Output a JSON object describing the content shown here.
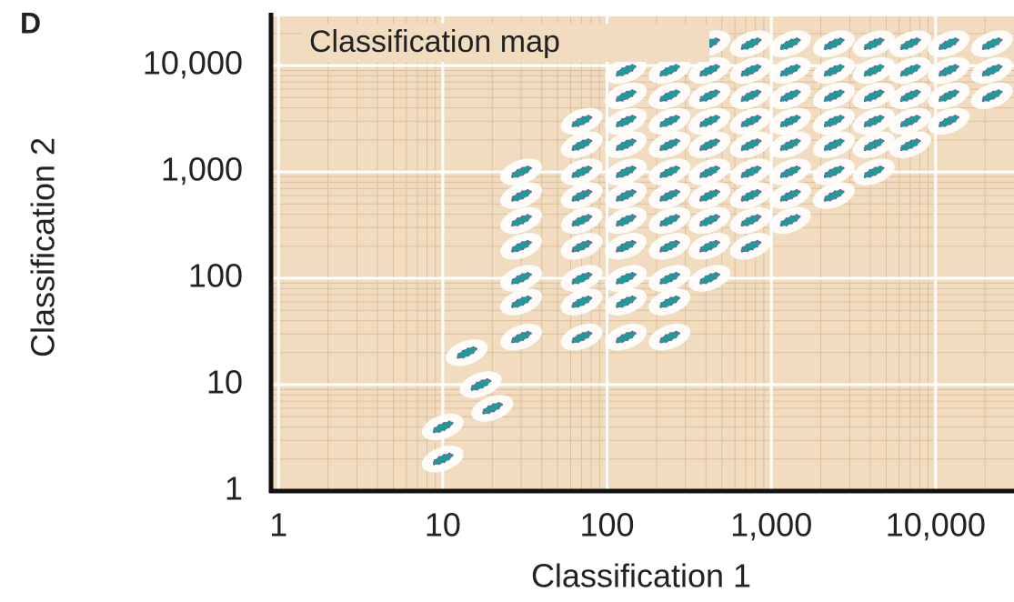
{
  "chart_data": {
    "type": "scatter",
    "panel_label": "D",
    "title": "Classification map",
    "x_label": "Classification 1",
    "y_label": "Classification 2",
    "log_x": true,
    "log_y": true,
    "grid": true,
    "background": "#f1dcc0",
    "color": "#1f9a9a",
    "halo_color": "#ffffff",
    "xlim": [
      0.9,
      30000
    ],
    "ylim": [
      1,
      29000
    ],
    "xticks": [
      1,
      10,
      100,
      {
        "value": 1000,
        "label": "1,000"
      },
      {
        "value": 10000,
        "label": "10,000"
      }
    ],
    "yticks": [
      1,
      10,
      100,
      {
        "value": 1000,
        "label": "1,000"
      },
      {
        "value": 10000,
        "label": "10,000"
      }
    ],
    "x": [
      10,
      10,
      14,
      17,
      20,
      30,
      30,
      30,
      30,
      30,
      30,
      30,
      70,
      70,
      70,
      70,
      70,
      70,
      70,
      70,
      70,
      130,
      130,
      130,
      130,
      130,
      130,
      130,
      130,
      130,
      130,
      130,
      240,
      240,
      240,
      240,
      240,
      240,
      240,
      240,
      240,
      240,
      240,
      420,
      420,
      420,
      420,
      420,
      420,
      420,
      420,
      420,
      420,
      750,
      750,
      750,
      750,
      750,
      750,
      750,
      750,
      750,
      1300,
      1300,
      1300,
      1300,
      1300,
      1300,
      1300,
      1300,
      2400,
      2400,
      2400,
      2400,
      2400,
      2400,
      2400,
      4200,
      4200,
      4200,
      4200,
      4200,
      4200,
      7000,
      7000,
      7000,
      7000,
      7000,
      12000,
      12000,
      12000,
      12000,
      22000,
      22000,
      22000
    ],
    "y": [
      2,
      4,
      20,
      10,
      6,
      28,
      60,
      100,
      200,
      350,
      600,
      1000,
      28,
      60,
      100,
      200,
      350,
      600,
      1000,
      1800,
      3000,
      28,
      60,
      100,
      200,
      350,
      600,
      1000,
      1800,
      3000,
      5200,
      9000,
      28,
      60,
      100,
      200,
      350,
      600,
      1000,
      1800,
      3000,
      5200,
      9000,
      100,
      200,
      350,
      600,
      1000,
      1800,
      3000,
      5200,
      9000,
      16000,
      200,
      350,
      600,
      1000,
      1800,
      3000,
      5200,
      9000,
      16000,
      350,
      600,
      1000,
      1800,
      3000,
      5200,
      9000,
      16000,
      600,
      1000,
      1800,
      3000,
      5200,
      9000,
      16000,
      1000,
      1800,
      3000,
      5200,
      9000,
      16000,
      1800,
      3000,
      5200,
      9000,
      16000,
      3000,
      5200,
      9000,
      16000,
      5200,
      9000,
      16000
    ]
  }
}
